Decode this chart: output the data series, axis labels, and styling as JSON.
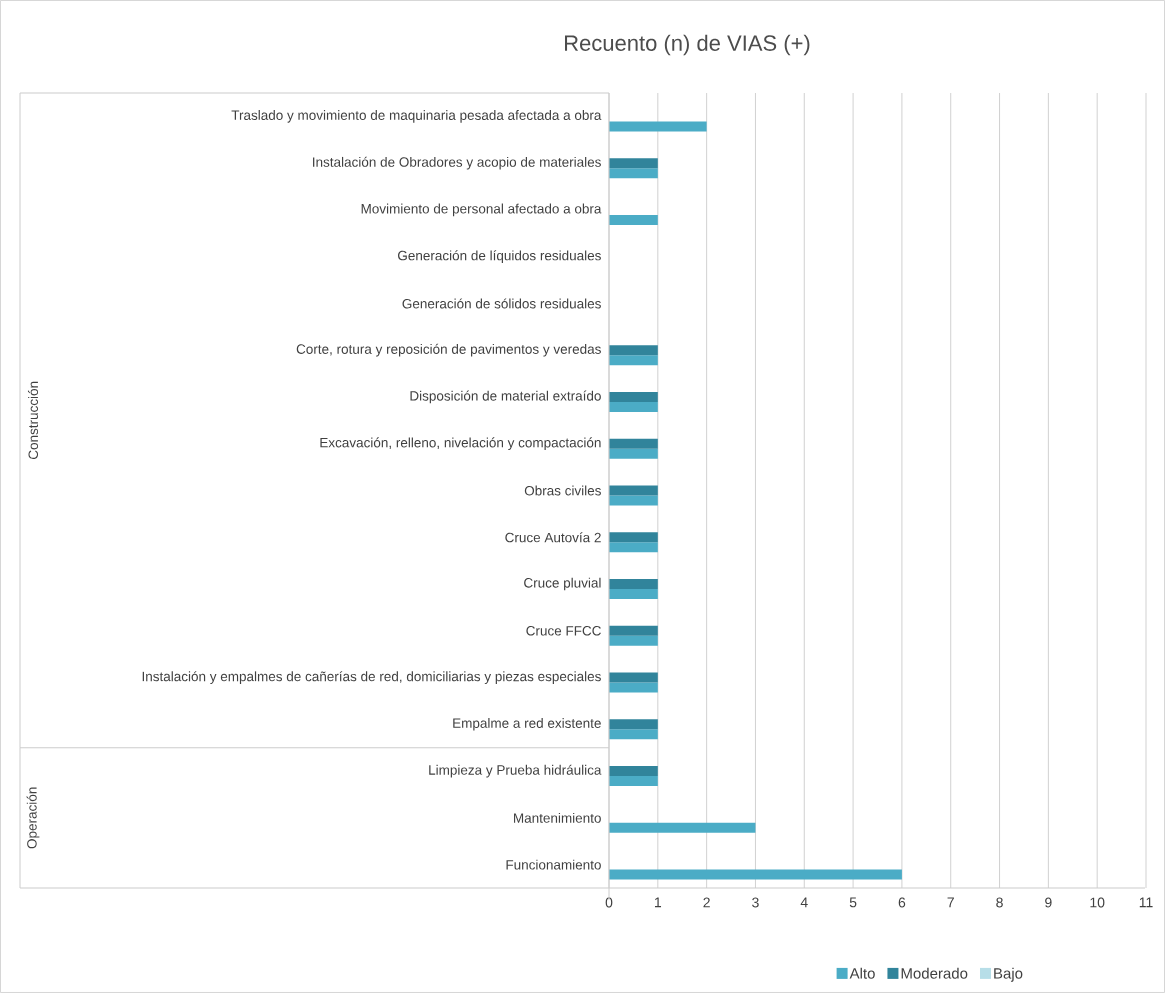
{
  "chart_data": {
    "type": "bar",
    "orientation": "horizontal",
    "title": "Recuento (n) de VIAS (+)",
    "categories": [
      "Traslado y movimiento de maquinaria pesada afectada a obra",
      "Instalación de Obradores y acopio de materiales",
      "Movimiento de personal afectado a obra",
      "Generación de líquidos residuales",
      "Generación de sólidos residuales",
      "Corte, rotura y reposición de pavimentos y veredas",
      "Disposición de material extraído",
      "Excavación, relleno, nivelación y compactación",
      "Obras civiles",
      "Cruce Autovía 2",
      "Cruce pluvial",
      "Cruce FFCC",
      "Instalación y empalmes de cañerías de red, domiciliarias y piezas especiales",
      "Empalme a red existente",
      "Limpieza y Prueba hidráulica",
      "Mantenimiento",
      "Funcionamiento"
    ],
    "series": [
      {
        "name": "Alto",
        "color": "#4bacc6",
        "values": [
          2,
          1,
          1,
          0,
          0,
          1,
          1,
          1,
          1,
          1,
          1,
          1,
          1,
          1,
          1,
          3,
          6
        ]
      },
      {
        "name": "Moderado",
        "color": "#31849b",
        "values": [
          0,
          1,
          0,
          0,
          0,
          1,
          1,
          1,
          1,
          1,
          1,
          1,
          1,
          1,
          1,
          0,
          0
        ]
      },
      {
        "name": "Bajo",
        "color": "#b7dee8",
        "values": [
          0,
          0,
          0,
          0,
          0,
          0,
          0,
          0,
          0,
          0,
          0,
          0,
          0,
          0,
          0,
          0,
          0
        ]
      }
    ],
    "xlim": [
      0,
      11
    ],
    "xticks": [
      0,
      1,
      2,
      3,
      4,
      5,
      6,
      7,
      8,
      9,
      10,
      11
    ],
    "grid": "x",
    "legend": "bottom",
    "annotations": [
      "Construcción",
      "Operación"
    ]
  }
}
